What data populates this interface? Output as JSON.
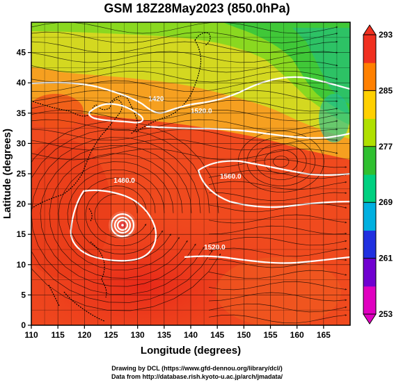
{
  "title": "GSM 18Z28May2023 (850.0hPa)",
  "x_axis": {
    "label": "Longitude (degrees)",
    "ticks": [
      "110",
      "115",
      "120",
      "125",
      "130",
      "135",
      "140",
      "145",
      "150",
      "155",
      "160",
      "165"
    ],
    "range": [
      110,
      170
    ]
  },
  "y_axis": {
    "label": "Latitude  (degrees)",
    "ticks": [
      "0",
      "5",
      "10",
      "15",
      "20",
      "25",
      "30",
      "35",
      "40",
      "45"
    ],
    "range": [
      0,
      50
    ]
  },
  "colorbar": {
    "labels": [
      "293",
      "285",
      "277",
      "269",
      "261",
      "253"
    ],
    "range": [
      253,
      293
    ],
    "colors": [
      "#e000c0",
      "#7000d0",
      "#2030e0",
      "#00b0e0",
      "#00d080",
      "#30c030",
      "#b0e000",
      "#ffd000",
      "#ff8000",
      "#f03020"
    ]
  },
  "contours": {
    "color": "#ffffff",
    "labels": [
      {
        "text": "1420",
        "lon": 133.5,
        "lat": 37.0
      },
      {
        "text": "1520.0",
        "lon": 142.0,
        "lat": 35.0
      },
      {
        "text": "1480.0",
        "lon": 127.5,
        "lat": 23.5
      },
      {
        "text": "1560.0",
        "lon": 147.5,
        "lat": 24.2
      },
      {
        "text": "1520.0",
        "lon": 144.5,
        "lat": 12.5
      }
    ]
  },
  "typhoon_center": {
    "lon": 126.5,
    "lat": 18.5
  },
  "credit": [
    "Drawing by DCL (https://www.gfd-dennou.org/library/dcl/)",
    "Data from http://database.rish.kyoto-u.ac.jp/arch/jmadata/"
  ]
}
